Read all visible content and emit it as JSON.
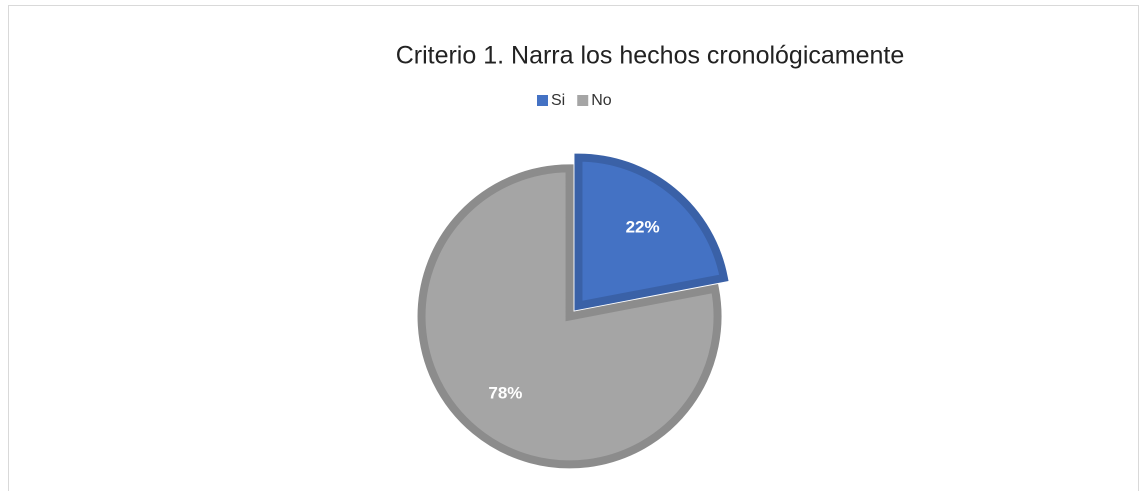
{
  "chart_data": {
    "type": "pie",
    "title": "Criterio 1. Narra los hechos cronológicamente",
    "categories": [
      "Si",
      "No"
    ],
    "values": [
      22,
      78
    ],
    "value_labels": [
      "22%",
      "78%"
    ],
    "colors": [
      "#4472c4",
      "#a5a5a5"
    ],
    "legend": "top"
  }
}
